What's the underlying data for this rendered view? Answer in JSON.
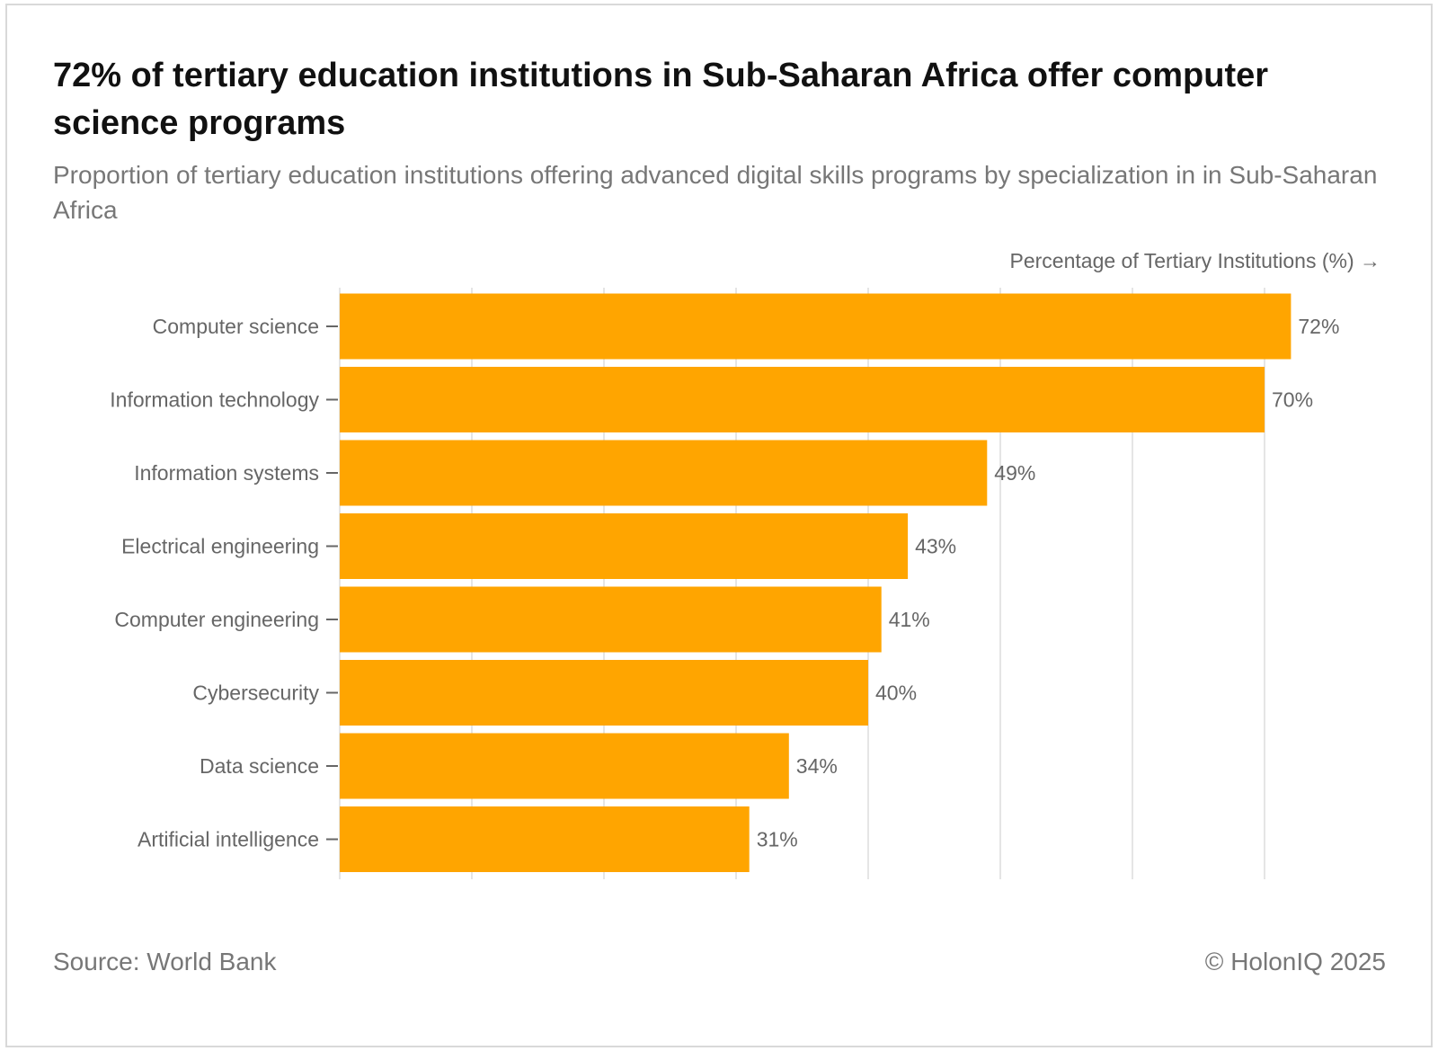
{
  "title": "72% of tertiary education institutions in Sub-Saharan Africa offer computer science programs",
  "subtitle": "Proportion of tertiary education institutions offering advanced digital skills programs by specialization in in Sub-Saharan Africa",
  "footer": {
    "source": "Source: World Bank",
    "copyright": "© HolonIQ 2025"
  },
  "colors": {
    "bar": "#FFA500",
    "gridline": "#e5e5e5",
    "label": "#666666"
  },
  "chart_data": {
    "type": "bar",
    "orientation": "horizontal",
    "xlabel": "Percentage of Tertiary Institutions (%) →",
    "categories": [
      "Computer science",
      "Information technology",
      "Information systems",
      "Electrical engineering",
      "Computer engineering",
      "Cybersecurity",
      "Data science",
      "Artificial intelligence"
    ],
    "values": [
      72,
      70,
      49,
      43,
      41,
      40,
      34,
      31
    ],
    "data_labels": [
      "72%",
      "70%",
      "49%",
      "43%",
      "41%",
      "40%",
      "34%",
      "31%"
    ],
    "xlim": [
      0,
      80
    ],
    "gridlines": [
      0,
      10,
      20,
      30,
      40,
      50,
      60,
      70
    ],
    "grid": true,
    "x_tick_labels_shown": false
  }
}
